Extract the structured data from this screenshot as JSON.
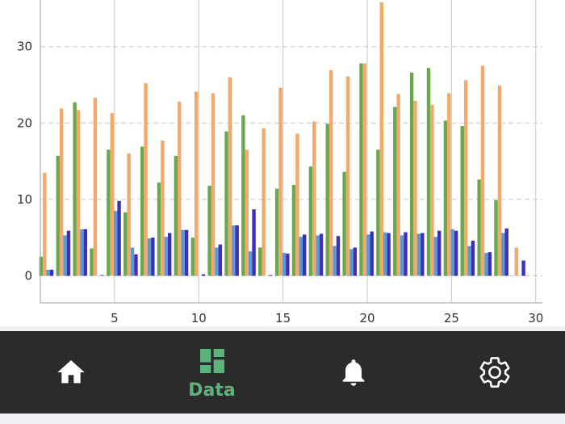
{
  "chart_data": {
    "type": "bar",
    "x": [
      1,
      2,
      3,
      4,
      5,
      6,
      7,
      8,
      9,
      10,
      11,
      12,
      13,
      14,
      15,
      16,
      17,
      18,
      19,
      20,
      21,
      22,
      23,
      24,
      25,
      26,
      27,
      28,
      29,
      30
    ],
    "series": [
      {
        "color": "#6aa84f",
        "values": [
          2.5,
          15.7,
          22.7,
          3.6,
          16.5,
          8.3,
          16.9,
          12.2,
          15.7,
          5.0,
          11.8,
          18.9,
          21.0,
          3.7,
          11.4,
          11.9,
          14.3,
          19.9,
          13.6,
          27.8,
          16.5,
          22.1,
          26.6,
          27.2,
          20.3,
          19.6,
          12.6,
          9.9,
          0,
          0
        ]
      },
      {
        "color": "#f4a96b",
        "values": [
          13.5,
          21.9,
          21.7,
          23.3,
          21.3,
          16.0,
          25.2,
          17.7,
          22.8,
          24.1,
          23.9,
          26.0,
          16.5,
          19.3,
          24.6,
          18.6,
          20.2,
          26.9,
          26.1,
          27.8,
          35.8,
          23.8,
          22.9,
          22.4,
          23.9,
          25.6,
          27.5,
          24.9,
          3.7,
          0
        ]
      },
      {
        "color": "#5b9bd5",
        "values": [
          0.8,
          5.3,
          6.1,
          0,
          8.5,
          3.7,
          4.9,
          5.1,
          6.0,
          0,
          3.7,
          6.6,
          3.2,
          0,
          3.0,
          5.1,
          5.3,
          3.9,
          3.5,
          5.4,
          5.7,
          5.3,
          5.5,
          5.1,
          6.1,
          3.9,
          3.0,
          5.6,
          0,
          0
        ]
      },
      {
        "color": "#3f2fb8",
        "values": [
          0.8,
          5.9,
          6.1,
          0.1,
          9.8,
          2.8,
          5.0,
          5.6,
          6.0,
          0.2,
          4.1,
          6.6,
          8.7,
          0.1,
          2.9,
          5.4,
          5.5,
          5.2,
          3.7,
          5.8,
          5.6,
          5.7,
          5.6,
          5.9,
          5.9,
          4.6,
          3.1,
          6.2,
          2.0,
          0
        ]
      }
    ],
    "xlim": [
      1,
      30
    ],
    "ylim": [
      -3.5,
      36
    ],
    "xticks": [
      5,
      10,
      15,
      20,
      25,
      30
    ],
    "yticks": [
      0,
      10,
      20,
      30
    ],
    "grid": true
  },
  "nav": {
    "items": [
      {
        "icon": "home-icon",
        "label": ""
      },
      {
        "icon": "dashboard-icon",
        "label": "Data"
      },
      {
        "icon": "bell-icon",
        "label": ""
      },
      {
        "icon": "gear-icon",
        "label": ""
      }
    ],
    "active_index": 1,
    "active_color": "#5db37e",
    "inactive_color": "#ffffff"
  }
}
